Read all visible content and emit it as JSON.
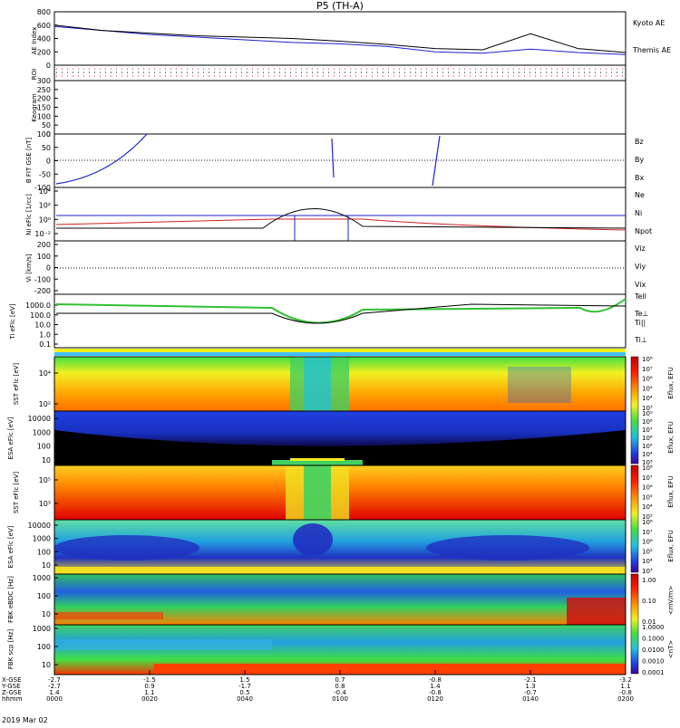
{
  "title": "P5 (TH-A)",
  "date_label": "2019 Mar 02",
  "footer": {
    "row_labels": [
      "X-GSE",
      "Y-GSE",
      "Z-GSE",
      "hhmm"
    ],
    "columns": [
      {
        "x": "-2.7",
        "y": "-2.7",
        "z": "1.4",
        "t": "0000"
      },
      {
        "x": "-1.5",
        "y": "0.9",
        "z": "1.1",
        "t": "0020"
      },
      {
        "x": "1.5",
        "y": "-1.7",
        "z": "0.5",
        "t": "0040"
      },
      {
        "x": "0.7",
        "y": "0.8",
        "z": "-0.4",
        "t": "0100"
      },
      {
        "x": "-0.8",
        "y": "1.4",
        "z": "-0.8",
        "t": "0120"
      },
      {
        "x": "-2.1",
        "y": "1.3",
        "z": "-0.7",
        "t": "0140"
      },
      {
        "x": "-3.2",
        "y": "1.1",
        "z": "-0.8",
        "t": "0200"
      }
    ]
  },
  "chart_data": [
    {
      "type": "line",
      "panel": "AE Index",
      "ylabel": "AE Index",
      "ylim": [
        0,
        800
      ],
      "y_ticks": [
        "800",
        "600",
        "400",
        "200",
        "0"
      ],
      "legend": [
        "Kyoto AE",
        "Themis AE"
      ],
      "colors": [
        "#2020d0",
        "#000000"
      ],
      "x_hours": [
        0,
        0.167,
        0.333,
        0.5,
        0.667,
        0.833,
        1.0,
        1.167,
        1.333,
        1.5,
        1.667,
        1.833,
        2.0
      ],
      "series": [
        {
          "name": "Kyoto AE",
          "values": [
            580,
            520,
            460,
            420,
            380,
            340,
            320,
            280,
            200,
            180,
            240,
            190,
            160
          ]
        },
        {
          "name": "Themis AE",
          "values": [
            600,
            520,
            480,
            440,
            420,
            400,
            360,
            310,
            250,
            230,
            470,
            250,
            190
          ]
        }
      ]
    },
    {
      "type": "scatter",
      "panel": "ROI",
      "ylabel": "ROI"
    },
    {
      "type": "line",
      "panel": "Keogram",
      "ylabel": "Keogram",
      "ylim": [
        0,
        300
      ],
      "y_ticks": [
        "300",
        "250",
        "200",
        "150",
        "100",
        "50",
        "0"
      ]
    },
    {
      "type": "line",
      "panel": "B_FIT",
      "ylabel": "B FIT GSE [nT]",
      "ylim": [
        -100,
        100
      ],
      "y_ticks": [
        "100",
        "50",
        "0",
        "-50",
        "-100"
      ],
      "legend": [
        "Bz",
        "By",
        "Bx"
      ],
      "colors": [
        "#d02020",
        "#30c030",
        "#2020d0"
      ]
    },
    {
      "type": "line",
      "panel": "Density",
      "ylabel": "Ni eFlc [1/cc]",
      "y_ticks": [
        "10⁴",
        "10²",
        "10⁰",
        "10⁻²"
      ],
      "legend": [
        "Ne",
        "Ni",
        "Npot"
      ],
      "colors": [
        "#d02020",
        "#000000",
        "#2020d0"
      ]
    },
    {
      "type": "line",
      "panel": "Velocity",
      "ylabel": "Vi [km/s]",
      "y_ticks": [
        "200",
        "100",
        "0",
        "-100",
        "-200"
      ],
      "legend": [
        "Viz",
        "Viy",
        "Vix"
      ],
      "colors": [
        "#d02020",
        "#30c030",
        "#2020d0"
      ]
    },
    {
      "type": "line",
      "panel": "Temperature",
      "ylabel": "Ti eFlc [eV]",
      "y_ticks": [
        "1000.0",
        "100.0",
        "10.0",
        "1.0",
        "0.1"
      ],
      "legend": [
        "Tell",
        "Te⊥",
        "Ti||",
        "Ti⊥"
      ],
      "colors": [
        "#000000",
        "#d02020",
        "#30c030",
        "#2020d0"
      ]
    },
    {
      "type": "heatmap",
      "panel": "SST electrons",
      "ylabel": "SST eFlc [eV]",
      "y_ticks": [
        "10⁴",
        "10²"
      ]
    },
    {
      "type": "heatmap",
      "panel": "ESA electrons",
      "ylabel": "ESA eFlc [eV]",
      "y_ticks": [
        "10000",
        "1000",
        "100",
        "10"
      ]
    },
    {
      "type": "heatmap",
      "panel": "SST ions",
      "ylabel": "SST eFlc [eV]",
      "y_ticks": [
        "10⁵",
        "10³"
      ]
    },
    {
      "type": "heatmap",
      "panel": "ESA ions",
      "ylabel": "ESA eFlc [eV]",
      "y_ticks": [
        "10000",
        "1000",
        "100",
        "10"
      ]
    },
    {
      "type": "heatmap",
      "panel": "FBK electric",
      "ylabel": "FBK eBDC [Hz]",
      "y_ticks": [
        "1000",
        "100",
        "10"
      ]
    },
    {
      "type": "heatmap",
      "panel": "FBK magnetic",
      "ylabel": "FBK scp [Hz]",
      "y_ticks": [
        "1000",
        "100",
        "10"
      ]
    }
  ],
  "colorbars": [
    {
      "label": "Eflux, EFU",
      "ticks": [
        "10⁸",
        "10⁷",
        "10⁶",
        "10⁵",
        "10⁴",
        "10³"
      ]
    },
    {
      "label": "Eflux, EFU",
      "ticks": [
        "10⁹",
        "10⁸",
        "10⁷",
        "10⁶",
        "10⁵",
        "10⁴",
        "10³"
      ]
    },
    {
      "label": "Eflux, EFU",
      "ticks": [
        "10⁸",
        "10⁷",
        "10⁶",
        "10⁵",
        "10⁴",
        "10³"
      ]
    },
    {
      "label": "Eflux, EFU",
      "ticks": [
        "10⁸",
        "10⁷",
        "10⁶",
        "10⁵",
        "10⁴",
        "10³"
      ]
    },
    {
      "label": "<mV/m>",
      "ticks": [
        "1.00",
        "0.10",
        "0.01"
      ]
    },
    {
      "label": "<nT>",
      "ticks": [
        "1.0000",
        "0.1000",
        "0.0100",
        "0.0010",
        "0.0001"
      ]
    }
  ]
}
